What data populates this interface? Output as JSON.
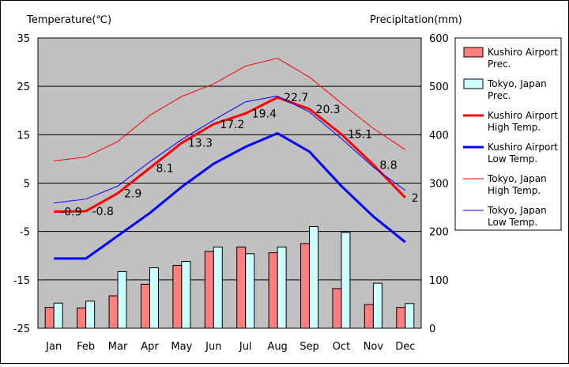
{
  "chart_data": {
    "type": "line+bar",
    "left_axis_title": "Temperature(℃)",
    "right_axis_title": "Precipitation(mm)",
    "categories": [
      "Jan",
      "Feb",
      "Mar",
      "Apr",
      "May",
      "Jun",
      "Jul",
      "Aug",
      "Sep",
      "Oct",
      "Nov",
      "Dec"
    ],
    "left_ticks": [
      "35",
      "25",
      "15",
      "5",
      "-5",
      "-15",
      "-25"
    ],
    "right_ticks": [
      "600",
      "500",
      "400",
      "300",
      "200",
      "100",
      "0"
    ],
    "ylim_temperature": [
      -25,
      35
    ],
    "ylim_precipitation": [
      0,
      600
    ],
    "grid": true,
    "legend_position": "right",
    "series": [
      {
        "name": "Kushiro Airport Prec.",
        "kind": "bar",
        "axis": "right",
        "color": "#ff7f7f",
        "values": [
          43,
          42,
          67,
          91,
          130,
          159,
          168,
          156,
          175,
          82,
          49,
          43
        ]
      },
      {
        "name": "Tokyo, Japan Prec.",
        "kind": "bar",
        "axis": "right",
        "color": "#ccffff",
        "values": [
          52,
          56,
          117,
          125,
          138,
          168,
          154,
          168,
          210,
          198,
          93,
          51
        ]
      },
      {
        "name": "Kushiro Airport High Temp.",
        "kind": "line",
        "axis": "left",
        "color": "#ff0000",
        "values": [
          -0.9,
          -0.8,
          2.9,
          8.1,
          13.3,
          17.2,
          19.4,
          22.7,
          20.3,
          15.1,
          8.8,
          2
        ],
        "data_labels": [
          "-0.9",
          "-0.8",
          "2.9",
          "8.1",
          "13.3",
          "17.2",
          "19.4",
          "22.7",
          "20.3",
          "15.1",
          "8.8",
          "2"
        ]
      },
      {
        "name": "Kushiro Airport Low Temp.",
        "kind": "line",
        "axis": "left",
        "color": "#0000ff",
        "values": [
          -10.6,
          -10.6,
          -5.9,
          -1.2,
          4.2,
          9.0,
          12.5,
          15.3,
          11.5,
          4.4,
          -1.9,
          -7.2
        ]
      },
      {
        "name": "Tokyo, Japan High Temp.",
        "kind": "line",
        "axis": "left",
        "color": "#ff0000",
        "values": [
          9.6,
          10.4,
          13.6,
          19.0,
          22.9,
          25.5,
          29.2,
          30.8,
          26.9,
          21.5,
          16.3,
          11.9
        ]
      },
      {
        "name": "Tokyo, Japan Low Temp.",
        "kind": "line",
        "axis": "left",
        "color": "#0000ff",
        "values": [
          0.9,
          1.7,
          4.4,
          9.4,
          14.0,
          18.0,
          21.8,
          23.0,
          19.7,
          14.2,
          8.3,
          3.5
        ]
      }
    ],
    "legend_items": [
      {
        "line1": "Kushiro Airport",
        "line2": "Prec.",
        "marker": "box",
        "color": "#ff7f7f"
      },
      {
        "line1": "Tokyo, Japan",
        "line2": "Prec.",
        "marker": "box",
        "color": "#ccffff"
      },
      {
        "line1": "Kushiro Airport",
        "line2": "High Temp.",
        "marker": "thick-line",
        "color": "#ff0000"
      },
      {
        "line1": "Kushiro Airport",
        "line2": "Low Temp.",
        "marker": "thick-line",
        "color": "#0000ff"
      },
      {
        "line1": "Tokyo, Japan",
        "line2": "High Temp.",
        "marker": "thin-line",
        "color": "#ff0000"
      },
      {
        "line1": "Tokyo, Japan",
        "line2": "Low Temp.",
        "marker": "thin-line",
        "color": "#0000ff"
      }
    ],
    "colors": {
      "plot_background": "#c0c0c0",
      "grid": "#000000",
      "axis_text": "#000000"
    }
  }
}
